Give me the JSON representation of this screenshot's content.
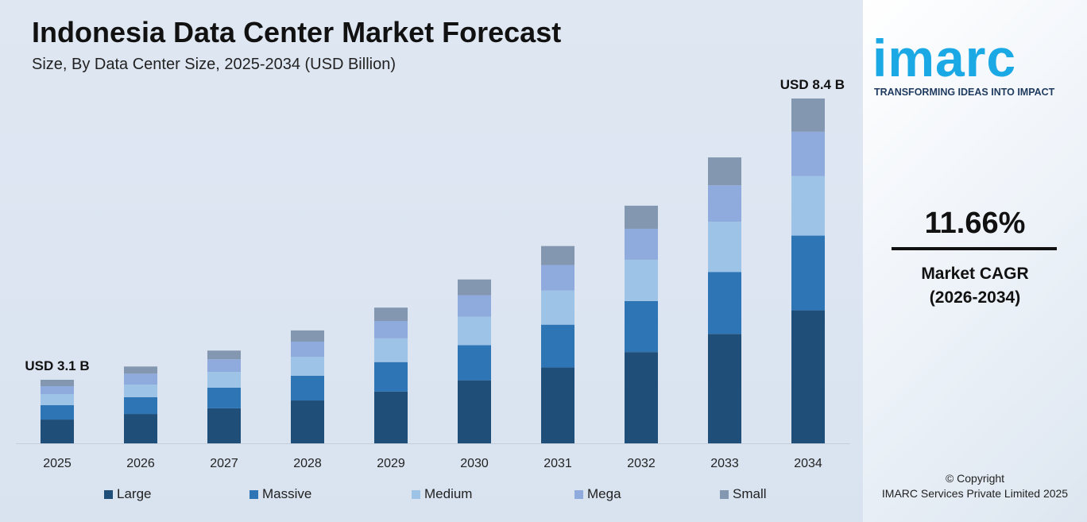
{
  "chart_data": {
    "type": "bar",
    "stacked": true,
    "title": "Indonesia Data Center Market Forecast",
    "subtitle": "Size, By Data Center Size, 2025-2034 (USD Billion)",
    "categories": [
      "2025",
      "2026",
      "2027",
      "2028",
      "2029",
      "2030",
      "2031",
      "2032",
      "2033",
      "2034"
    ],
    "series": [
      {
        "name": "Large",
        "color": "#1f4e79",
        "values": [
          1.16,
          1.28,
          1.38,
          1.53,
          1.7,
          1.92,
          2.16,
          2.45,
          2.79,
          3.24
        ]
      },
      {
        "name": "Massive",
        "color": "#2e75b6",
        "values": [
          0.7,
          0.73,
          0.81,
          0.88,
          0.97,
          1.07,
          1.22,
          1.37,
          1.58,
          1.82
        ]
      },
      {
        "name": "Medium",
        "color": "#9dc3e6",
        "values": [
          0.54,
          0.55,
          0.62,
          0.68,
          0.78,
          0.87,
          0.97,
          1.11,
          1.28,
          1.45
        ]
      },
      {
        "name": "Mega",
        "color": "#8faadc",
        "values": [
          0.39,
          0.48,
          0.5,
          0.54,
          0.57,
          0.65,
          0.73,
          0.83,
          0.93,
          1.08
        ]
      },
      {
        "name": "Small",
        "color": "#8497b0",
        "values": [
          0.31,
          0.31,
          0.34,
          0.4,
          0.44,
          0.48,
          0.54,
          0.62,
          0.71,
          0.81
        ]
      }
    ],
    "annotations": [
      {
        "category": "2025",
        "text": "USD 3.1 B"
      },
      {
        "category": "2034",
        "text": "USD 8.4 B"
      }
    ],
    "legend_position": "bottom",
    "grid": false
  },
  "brand": {
    "logo": "imarc",
    "tagline": "TRANSFORMING IDEAS INTO IMPACT"
  },
  "cagr": {
    "value": "11.66%",
    "label": "Market CAGR",
    "period": "(2026-2034)"
  },
  "copyright": {
    "line1": "© Copyright",
    "line2": "IMARC Services Private Limited 2025"
  }
}
